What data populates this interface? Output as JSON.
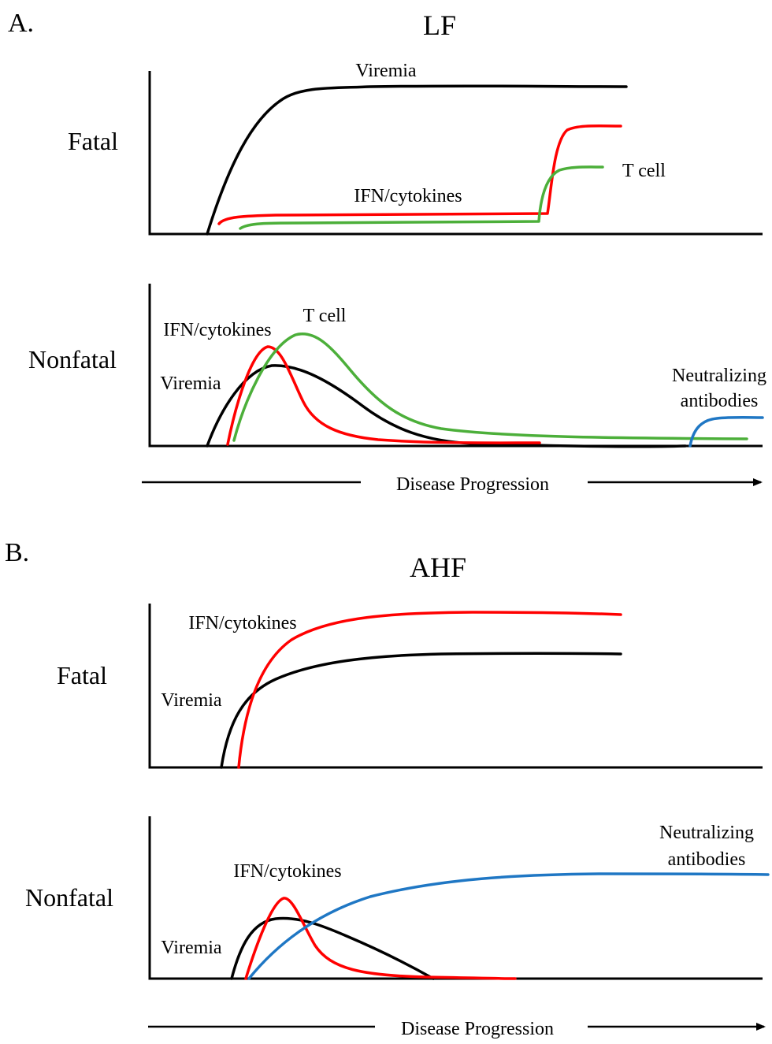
{
  "colors": {
    "viremia": "#000000",
    "ifn": "#ff0000",
    "tcell": "#4caf3a",
    "antibodies": "#1f77c4"
  },
  "panelA": {
    "letter": "A.",
    "title": "LF",
    "fatal": {
      "row_label": "Fatal",
      "labels": {
        "viremia": "Viremia",
        "ifn": "IFN/cytokines",
        "tcell": "T cell"
      }
    },
    "nonfatal": {
      "row_label": "Nonfatal",
      "labels": {
        "ifn": "IFN/cytokines",
        "tcell": "T cell",
        "viremia": "Viremia",
        "antibodies_line1": "Neutralizing",
        "antibodies_line2": "antibodies"
      }
    },
    "axis_label": "Disease Progression"
  },
  "panelB": {
    "letter": "B.",
    "title": "AHF",
    "fatal": {
      "row_label": "Fatal",
      "labels": {
        "ifn": "IFN/cytokines",
        "viremia": "Viremia"
      }
    },
    "nonfatal": {
      "row_label": "Nonfatal",
      "labels": {
        "antibodies_line1": "Neutralizing",
        "antibodies_line2": "antibodies",
        "ifn": "IFN/cytokines",
        "viremia": "Viremia"
      }
    },
    "axis_label": "Disease Progression"
  }
}
